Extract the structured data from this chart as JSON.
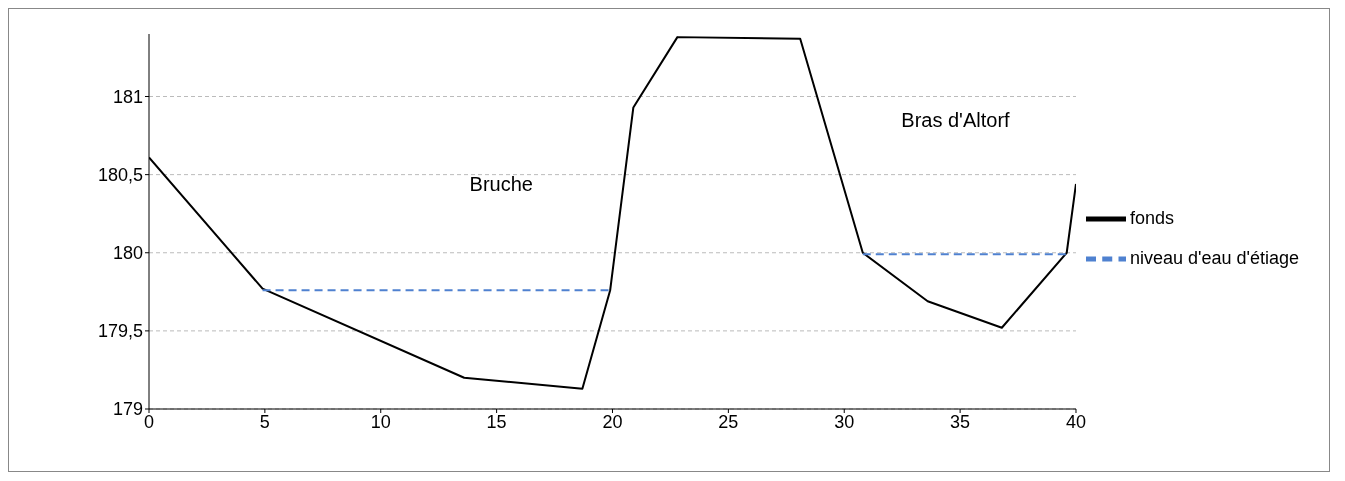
{
  "chart_data": {
    "type": "line",
    "x": [
      0,
      4.9,
      13.6,
      18.7,
      19.9,
      20.9,
      22.8,
      28.1,
      30.8,
      33.6,
      36.8,
      39.6,
      40
    ],
    "series": [
      {
        "name": "fonds",
        "color": "#000000",
        "values": [
          180.61,
          179.77,
          179.2,
          179.13,
          179.76,
          180.93,
          181.38,
          181.37,
          180,
          179.69,
          179.52,
          180,
          180.44
        ]
      },
      {
        "name": "niveau d'eau d'étiage",
        "color": "#4f81d0",
        "line_style": "dashed",
        "x": [
          4.9,
          19.9,
          25,
          30.8,
          39.6
        ],
        "values": [
          179.76,
          179.76,
          null,
          179.99,
          179.99
        ]
      }
    ],
    "xlim": [
      0,
      40
    ],
    "xticks": [
      0,
      5,
      10,
      15,
      20,
      25,
      30,
      35,
      40
    ],
    "ylim": [
      179,
      181.4
    ],
    "yticks": [
      179,
      {
        "value": 179.5,
        "label": "179,5"
      },
      180,
      {
        "value": 180.5,
        "label": "180,5"
      },
      181
    ],
    "grid": "y",
    "legend": "right",
    "marker": "none",
    "annotations": [
      "Bruche",
      "Bras d'Altorf"
    ]
  }
}
